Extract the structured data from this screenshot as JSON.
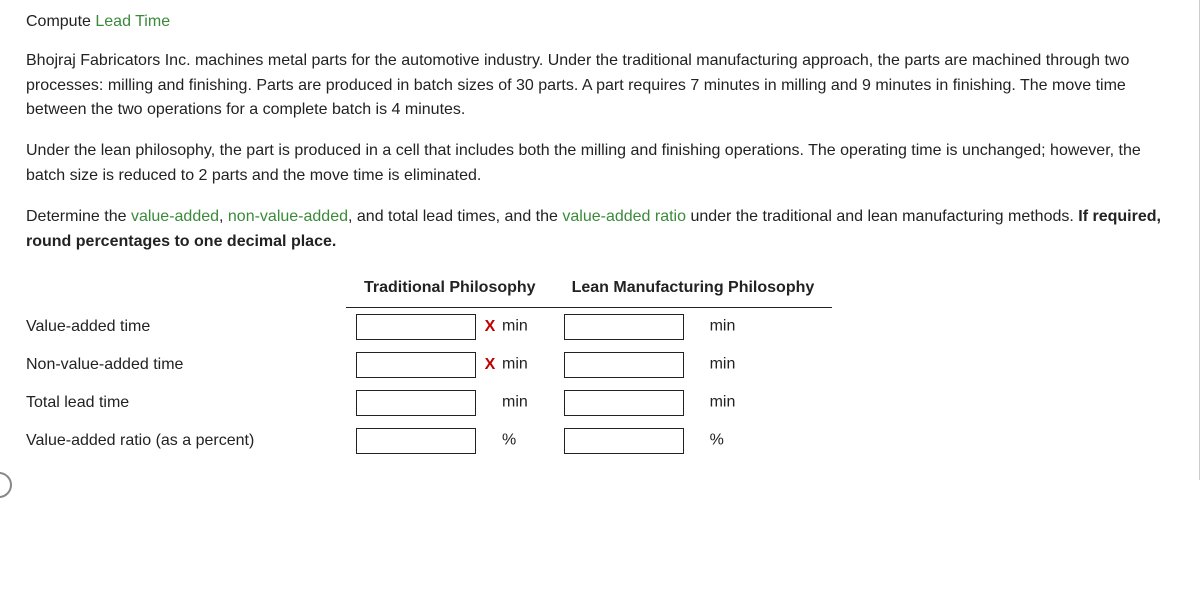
{
  "heading": {
    "prefix": "Compute ",
    "term": "Lead Time"
  },
  "para1": "Bhojraj Fabricators Inc. machines metal parts for the automotive industry. Under the traditional manufacturing approach, the parts are machined through two processes: milling and finishing. Parts are produced in batch sizes of 30 parts. A part requires 7 minutes in milling and 9 minutes in finishing. The move time between the two operations for a complete batch is 4 minutes.",
  "para2": "Under the lean philosophy, the part is produced in a cell that includes both the milling and finishing operations. The operating time is unchanged; however, the batch size is reduced to 2 parts and the move time is eliminated.",
  "para3": {
    "a": "Determine the ",
    "t1": "value-added",
    "b": ", ",
    "t2": "non-value-added",
    "c": ", and total lead times, and the ",
    "t3": "value-added ratio",
    "d": " under the traditional and lean manufacturing methods. ",
    "bold": "If required, round percentages to one decimal place."
  },
  "table": {
    "col1": "Traditional Philosophy",
    "col2": "Lean Manufacturing Philosophy",
    "rows": [
      {
        "label": "Value-added time",
        "trad_mark": "X",
        "trad_unit": "min",
        "lean_mark": "",
        "lean_unit": "min"
      },
      {
        "label": "Non-value-added time",
        "trad_mark": "X",
        "trad_unit": "min",
        "lean_mark": "",
        "lean_unit": "min"
      },
      {
        "label": "Total lead time",
        "trad_mark": "",
        "trad_unit": "min",
        "lean_mark": "",
        "lean_unit": "min"
      },
      {
        "label": "Value-added ratio (as a percent)",
        "trad_mark": "",
        "trad_unit": "%",
        "lean_mark": "",
        "lean_unit": "%"
      }
    ]
  }
}
